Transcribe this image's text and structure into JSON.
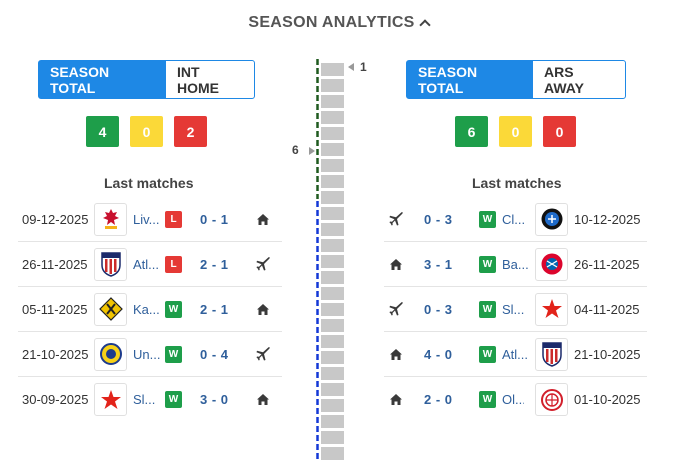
{
  "header": {
    "title": "SEASON ANALYTICS"
  },
  "left": {
    "tabs": {
      "active": "SEASON TOTAL",
      "inactive": "INT HOME"
    },
    "counts": {
      "wins": "4",
      "draws": "0",
      "losses": "2"
    },
    "last_matches_label": "Last matches",
    "matches": [
      {
        "date": "09-12-2025",
        "logo": "liverpool-crest-icon",
        "team": "Liv...",
        "result": "L",
        "score": "0 - 1",
        "venue": "home-icon"
      },
      {
        "date": "26-11-2025",
        "logo": "atletico-crest-icon",
        "team": "Atl...",
        "result": "L",
        "score": "2 - 1",
        "venue": "plane-icon"
      },
      {
        "date": "05-11-2025",
        "logo": "kairat-crest-icon",
        "team": "Ka...",
        "result": "W",
        "score": "2 - 1",
        "venue": "home-icon"
      },
      {
        "date": "21-10-2025",
        "logo": "union-sg-crest-icon",
        "team": "Un...",
        "result": "W",
        "score": "0 - 4",
        "venue": "plane-icon"
      },
      {
        "date": "30-09-2025",
        "logo": "slavia-crest-icon",
        "team": "Sl...",
        "result": "W",
        "score": "3 - 0",
        "venue": "home-icon"
      }
    ]
  },
  "right": {
    "tabs": {
      "active": "SEASON TOTAL",
      "inactive": "ARS AWAY"
    },
    "counts": {
      "wins": "6",
      "draws": "0",
      "losses": "0"
    },
    "last_matches_label": "Last matches",
    "matches": [
      {
        "date": "10-12-2025",
        "logo": "club-brugge-crest-icon",
        "team": "Cl...",
        "result": "W",
        "score": "0 - 3",
        "venue": "plane-icon"
      },
      {
        "date": "26-11-2025",
        "logo": "bayern-crest-icon",
        "team": "Ba...",
        "result": "W",
        "score": "3 - 1",
        "venue": "home-icon"
      },
      {
        "date": "04-11-2025",
        "logo": "slavia-crest-icon",
        "team": "Sl...",
        "result": "W",
        "score": "0 - 3",
        "venue": "plane-icon"
      },
      {
        "date": "21-10-2025",
        "logo": "atletico-crest-icon",
        "team": "Atl...",
        "result": "W",
        "score": "4 - 0",
        "venue": "home-icon"
      },
      {
        "date": "01-10-2025",
        "logo": "olympiacos-crest-icon",
        "team": "Ol...",
        "result": "W",
        "score": "2 - 0",
        "venue": "home-icon"
      }
    ]
  },
  "centerbar": {
    "top_marker": "1",
    "mid_marker": "6"
  },
  "colors": {
    "accent": "#1e88e5",
    "win": "#1e9e4a",
    "draw": "#fbd938",
    "loss": "#e53935",
    "team_link": "#2f5f9b"
  }
}
